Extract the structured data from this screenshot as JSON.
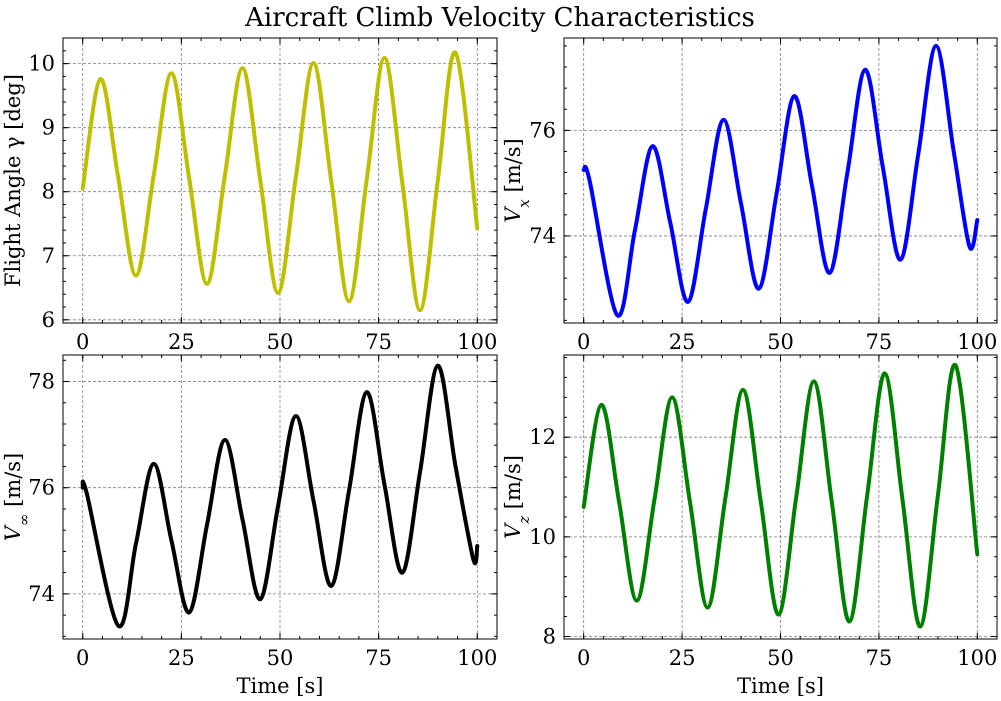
{
  "figure": {
    "title": "Aircraft Climb Velocity Characteristics"
  },
  "chart_data": [
    {
      "type": "line",
      "ylabel": "Flight Angle γ [deg]",
      "xlabel": "",
      "xlim": [
        -5,
        105
      ],
      "ylim": [
        5.95,
        10.4
      ],
      "xticks": [
        0,
        25,
        50,
        75,
        100
      ],
      "yticks": [
        6,
        7,
        8,
        9,
        10
      ],
      "ytick_labels": [
        "6",
        "7",
        "8",
        "9",
        "10"
      ],
      "grid": true,
      "color": "#bfbf00",
      "x": [
        0,
        4.5,
        9,
        13.5,
        18,
        22.5,
        27,
        31.5,
        36,
        40.5,
        45,
        49.5,
        54,
        58.5,
        63,
        67.5,
        72,
        76.5,
        81,
        85.5,
        90,
        94.5,
        100
      ],
      "y": [
        8.05,
        9.76,
        8.22,
        6.69,
        8.26,
        9.85,
        8.2,
        6.56,
        8.24,
        9.93,
        8.18,
        6.42,
        8.22,
        10.01,
        8.16,
        6.29,
        8.2,
        10.09,
        8.14,
        6.15,
        8.18,
        10.17,
        7.43
      ]
    },
    {
      "type": "line",
      "ylabel": "V_x [m/s]",
      "xlabel": "",
      "xlim": [
        -5,
        105
      ],
      "ylim": [
        72.35,
        77.75
      ],
      "xticks": [
        0,
        25,
        50,
        75,
        100
      ],
      "yticks": [
        74,
        76
      ],
      "ytick_labels": [
        "74",
        "76"
      ],
      "grid": true,
      "color": "#0000ff",
      "x": [
        0,
        1.5,
        8.5,
        13,
        17.5,
        22,
        26.5,
        31,
        35.5,
        40,
        44.5,
        49,
        53.5,
        58,
        62.5,
        67,
        71.5,
        76,
        80.5,
        85,
        89.5,
        94,
        98,
        100
      ],
      "y": [
        75.25,
        75.05,
        72.5,
        74.1,
        75.7,
        74.25,
        72.75,
        74.5,
        76.2,
        74.6,
        73.0,
        74.8,
        76.65,
        74.95,
        73.3,
        75.2,
        77.15,
        75.3,
        73.55,
        75.55,
        77.6,
        75.6,
        73.8,
        74.3
      ]
    },
    {
      "type": "line",
      "ylabel": "V_∞ [m/s]",
      "xlabel": "Time [s]",
      "xlim": [
        -5,
        105
      ],
      "ylim": [
        73.15,
        78.5
      ],
      "xticks": [
        0,
        25,
        50,
        75,
        100
      ],
      "yticks": [
        74,
        76,
        78
      ],
      "ytick_labels": [
        "74",
        "76",
        "78"
      ],
      "grid": true,
      "color": "#000000",
      "x": [
        0,
        1,
        9,
        13.5,
        18,
        22.5,
        27,
        31.5,
        36,
        40.5,
        45,
        49.5,
        54,
        58.5,
        63,
        67.5,
        72,
        76.5,
        81,
        85.5,
        90,
        94.5,
        99,
        100
      ],
      "y": [
        76.0,
        75.9,
        73.4,
        74.95,
        76.45,
        75.0,
        73.65,
        75.3,
        76.9,
        75.4,
        73.9,
        75.65,
        77.35,
        75.75,
        74.15,
        75.95,
        77.8,
        76.05,
        74.4,
        76.3,
        78.3,
        76.4,
        74.65,
        74.9
      ]
    },
    {
      "type": "line",
      "ylabel": "V_z [m/s]",
      "xlabel": "Time [s]",
      "xlim": [
        -5,
        105
      ],
      "ylim": [
        7.95,
        13.65
      ],
      "xticks": [
        0,
        25,
        50,
        75,
        100
      ],
      "yticks": [
        8,
        10,
        12
      ],
      "ytick_labels": [
        "8",
        "10",
        "12"
      ],
      "grid": true,
      "color": "#008000",
      "x": [
        0,
        4.5,
        9,
        13.5,
        18,
        22.5,
        27,
        31.5,
        36,
        40.5,
        45,
        49.5,
        54,
        58.5,
        63,
        67.5,
        72,
        76.5,
        81,
        85.5,
        90,
        94.5,
        100
      ],
      "y": [
        10.6,
        12.65,
        10.7,
        8.72,
        10.76,
        12.8,
        10.7,
        8.58,
        10.78,
        12.95,
        10.7,
        8.44,
        10.8,
        13.12,
        10.72,
        8.3,
        10.82,
        13.28,
        10.74,
        8.2,
        10.84,
        13.44,
        9.65
      ]
    }
  ]
}
